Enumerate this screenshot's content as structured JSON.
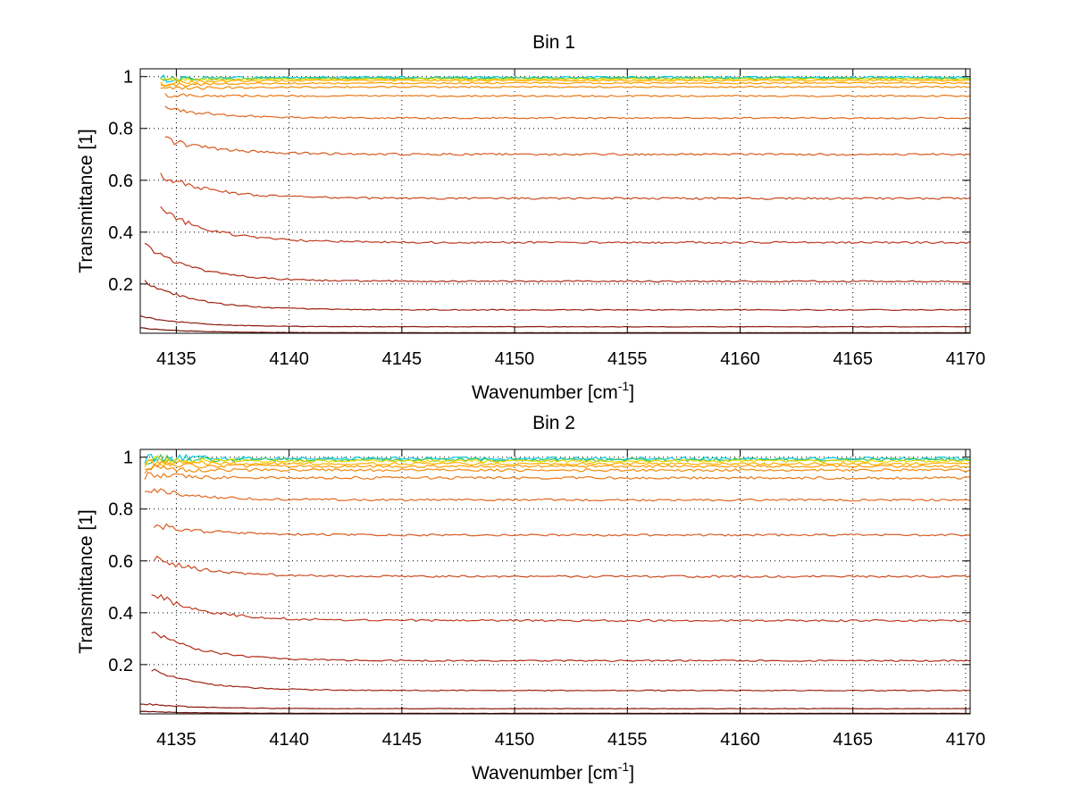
{
  "chart_data": [
    {
      "type": "line",
      "title": "Bin 1",
      "xlabel": "Wavenumber [cm",
      "xlabel_sup": "-1",
      "xlabel_end": "]",
      "ylabel": "Transmittance [1]",
      "xlim": [
        4133.4,
        4170.2
      ],
      "ylim": [
        0.01,
        1.03
      ],
      "xticks": [
        4135,
        4140,
        4145,
        4150,
        4155,
        4160,
        4165,
        4170
      ],
      "yticks": [
        0.2,
        0.4,
        0.6,
        0.8,
        1
      ],
      "grid": true,
      "colors": {
        "high_cyan": "#00c8e0",
        "high_green": "#40c060",
        "yellow": "#e8d800",
        "orange": "#ff9c00",
        "dark_orange": "#e06820",
        "red": "#c03a20",
        "dark_red": "#8c1a0c"
      },
      "series": [
        {
          "start_x": 4134.3,
          "start_y": 0.99,
          "level": 0.997,
          "color": "#00c8e0",
          "noise": 0.004
        },
        {
          "start_x": 4134.3,
          "start_y": 0.99,
          "level": 0.994,
          "color": "#40c060",
          "noise": 0.004
        },
        {
          "start_x": 4134.3,
          "start_y": 0.985,
          "level": 0.99,
          "color": "#e8d800",
          "noise": 0.003
        },
        {
          "start_x": 4134.3,
          "start_y": 0.975,
          "level": 0.985,
          "color": "#ffb000",
          "noise": 0.003
        },
        {
          "start_x": 4134.3,
          "start_y": 0.965,
          "level": 0.975,
          "color": "#ff9c00",
          "noise": 0.003
        },
        {
          "start_x": 4134.3,
          "start_y": 0.95,
          "level": 0.96,
          "color": "#f08c10",
          "noise": 0.003
        },
        {
          "start_x": 4134.5,
          "start_y": 0.93,
          "level": 0.925,
          "color": "#e87818",
          "noise": 0.003
        },
        {
          "start_x": 4134.5,
          "start_y": 0.88,
          "level": 0.84,
          "color": "#e06820",
          "noise": 0.003
        },
        {
          "start_x": 4134.5,
          "start_y": 0.76,
          "level": 0.7,
          "color": "#d85a20",
          "noise": 0.004
        },
        {
          "start_x": 4134.3,
          "start_y": 0.62,
          "level": 0.53,
          "color": "#cc4a20",
          "noise": 0.004
        },
        {
          "start_x": 4134.3,
          "start_y": 0.49,
          "level": 0.36,
          "color": "#c03a20",
          "noise": 0.004
        },
        {
          "start_x": 4133.6,
          "start_y": 0.35,
          "level": 0.21,
          "color": "#b02c18",
          "noise": 0.003
        },
        {
          "start_x": 4133.6,
          "start_y": 0.21,
          "level": 0.1,
          "color": "#a02414",
          "noise": 0.002
        },
        {
          "start_x": 4133.4,
          "start_y": 0.075,
          "level": 0.035,
          "color": "#8c1a0c",
          "noise": 0.001
        },
        {
          "start_x": 4133.4,
          "start_y": 0.03,
          "level": 0.012,
          "color": "#701008",
          "noise": 0.0005
        }
      ]
    },
    {
      "type": "line",
      "title": "Bin 2",
      "xlabel": "Wavenumber [cm",
      "xlabel_sup": "-1",
      "xlabel_end": "]",
      "ylabel": "Transmittance [1]",
      "xlim": [
        4133.4,
        4170.2
      ],
      "ylim": [
        0.01,
        1.03
      ],
      "xticks": [
        4135,
        4140,
        4145,
        4150,
        4155,
        4160,
        4165,
        4170
      ],
      "yticks": [
        0.2,
        0.4,
        0.6,
        0.8,
        1
      ],
      "grid": true,
      "colors": {
        "high_cyan": "#00c8e0",
        "high_green": "#40c060",
        "yellow": "#e8d800",
        "orange": "#ff9c00",
        "dark_orange": "#e06820",
        "red": "#c03a20",
        "dark_red": "#8c1a0c"
      },
      "series": [
        {
          "start_x": 4133.6,
          "start_y": 1.0,
          "level": 0.995,
          "color": "#00c8e0",
          "noise": 0.006
        },
        {
          "start_x": 4133.6,
          "start_y": 0.995,
          "level": 0.99,
          "color": "#40c060",
          "noise": 0.006
        },
        {
          "start_x": 4133.6,
          "start_y": 0.99,
          "level": 0.985,
          "color": "#e8d800",
          "noise": 0.005
        },
        {
          "start_x": 4133.6,
          "start_y": 0.98,
          "level": 0.975,
          "color": "#ffb000",
          "noise": 0.005
        },
        {
          "start_x": 4133.6,
          "start_y": 0.97,
          "level": 0.965,
          "color": "#ff9c00",
          "noise": 0.005
        },
        {
          "start_x": 4133.6,
          "start_y": 0.955,
          "level": 0.95,
          "color": "#f08c10",
          "noise": 0.005
        },
        {
          "start_x": 4133.6,
          "start_y": 0.93,
          "level": 0.92,
          "color": "#e87818",
          "noise": 0.005
        },
        {
          "start_x": 4133.6,
          "start_y": 0.88,
          "level": 0.835,
          "color": "#e06820",
          "noise": 0.004
        },
        {
          "start_x": 4134.0,
          "start_y": 0.74,
          "level": 0.7,
          "color": "#d85a20",
          "noise": 0.004
        },
        {
          "start_x": 4134.0,
          "start_y": 0.61,
          "level": 0.54,
          "color": "#cc4a20",
          "noise": 0.004
        },
        {
          "start_x": 4133.9,
          "start_y": 0.48,
          "level": 0.37,
          "color": "#c03a20",
          "noise": 0.004
        },
        {
          "start_x": 4133.9,
          "start_y": 0.33,
          "level": 0.215,
          "color": "#b02c18",
          "noise": 0.003
        },
        {
          "start_x": 4133.9,
          "start_y": 0.18,
          "level": 0.1,
          "color": "#a02414",
          "noise": 0.002
        },
        {
          "start_x": 4133.4,
          "start_y": 0.05,
          "level": 0.03,
          "color": "#8c1a0c",
          "noise": 0.001
        },
        {
          "start_x": 4133.4,
          "start_y": 0.02,
          "level": 0.012,
          "color": "#701008",
          "noise": 0.0005
        }
      ]
    }
  ]
}
